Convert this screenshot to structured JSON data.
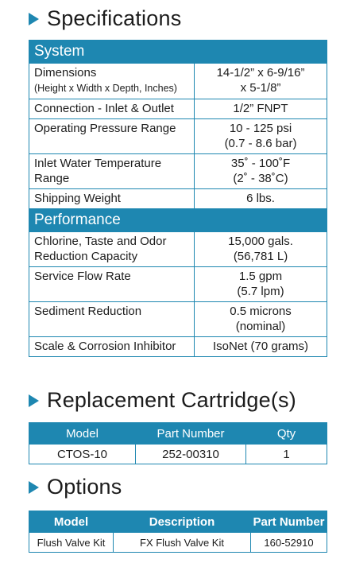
{
  "spec_title": "Specifications",
  "system": {
    "header": "System",
    "rows": [
      {
        "label": "Dimensions",
        "sublabel": "(Height x Width x Depth, Inches)",
        "value_1": "14-1/2” x 6-9/16”",
        "value_2": "x 5-1/8”"
      },
      {
        "label": "Connection - Inlet & Outlet",
        "value_1": "1/2” FNPT"
      },
      {
        "label": "Operating Pressure Range",
        "value_1": "10 - 125 psi",
        "value_2": "(0.7 - 8.6 bar)"
      },
      {
        "label": "Inlet Water Temperature",
        "label_2": "Range",
        "value_1": "35˚ - 100˚F",
        "value_2": "(2˚ - 38˚C)"
      },
      {
        "label": "Shipping Weight",
        "value_1": "6 lbs."
      }
    ]
  },
  "performance": {
    "header": "Performance",
    "rows": [
      {
        "label": "Chlorine, Taste and Odor",
        "label_2": "Reduction Capacity",
        "value_1": "15,000 gals.",
        "value_2": "(56,781 L)"
      },
      {
        "label": "Service Flow Rate",
        "value_1": "1.5 gpm",
        "value_2": "(5.7 lpm)"
      },
      {
        "label": "Sediment Reduction",
        "value_1": "0.5 microns",
        "value_2": "(nominal)"
      },
      {
        "label": "Scale & Corrosion Inhibitor",
        "value_1": "IsoNet (70 grams)"
      }
    ]
  },
  "replacement": {
    "title": "Replacement Cartridge(s)",
    "headers": [
      "Model",
      "Part Number",
      "Qty"
    ],
    "row": [
      "CTOS-10",
      "252-00310",
      "1"
    ]
  },
  "options": {
    "title": "Options",
    "headers": [
      "Model",
      "Description",
      "Part Number"
    ],
    "row": [
      "Flush Valve Kit",
      "FX Flush Valve Kit",
      "160-52910"
    ]
  },
  "colors": {
    "accent": "#1e87b1"
  }
}
